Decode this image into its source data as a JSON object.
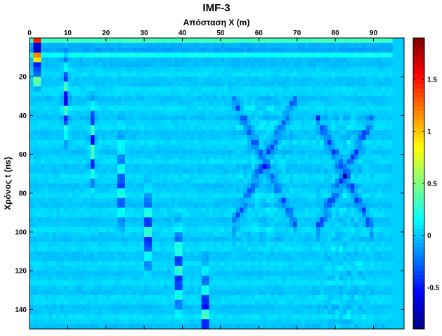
{
  "chart_data": {
    "type": "heatmap",
    "title": "IMF-3",
    "xlabel": "Απόσταση X (m)",
    "ylabel": "Χρόνος t (ns)",
    "xlim": [
      0,
      98
    ],
    "ylim": [
      0,
      150
    ],
    "x_axis_position": "top",
    "y_axis_reversed": true,
    "x_ticks": [
      0,
      10,
      20,
      30,
      40,
      50,
      60,
      70,
      80,
      90
    ],
    "y_ticks": [
      20,
      40,
      60,
      80,
      100,
      120,
      140
    ],
    "colormap": "jet",
    "clim": [
      -0.9,
      1.9
    ],
    "colorbar": {
      "ticks": [
        -0.5,
        0,
        0.5,
        1,
        1.5
      ],
      "tick_labels": [
        "-0.5",
        "0",
        "0.5",
        "1",
        "1.5"
      ],
      "position": "right"
    },
    "background_value": 0.02,
    "features": [
      {
        "kind": "near-surface-bands",
        "t_range": [
          0,
          15
        ],
        "note": "horizontal striping near the top across all traces"
      },
      {
        "kind": "hyperbola-limbs",
        "apexes": [
          {
            "x": 2,
            "t": 2,
            "peak": 1.9
          },
          {
            "x": 9.5,
            "t": 32,
            "peak": -0.55
          },
          {
            "x": 16.5,
            "t": 55,
            "peak": -0.6
          },
          {
            "x": 24,
            "t": 75,
            "peak": -0.6
          },
          {
            "x": 31,
            "t": 100,
            "peak": -0.7
          },
          {
            "x": 39,
            "t": 120,
            "peak": -0.75
          },
          {
            "x": 46,
            "t": 140,
            "peak": -0.8
          }
        ]
      },
      {
        "kind": "diffraction-zone",
        "x_range": [
          53,
          70
        ],
        "t_range": [
          30,
          110
        ],
        "amplitude": -0.4
      },
      {
        "kind": "diffraction-zone",
        "x_range": [
          75,
          90
        ],
        "t_range": [
          40,
          150
        ],
        "amplitude": -0.45
      }
    ]
  }
}
